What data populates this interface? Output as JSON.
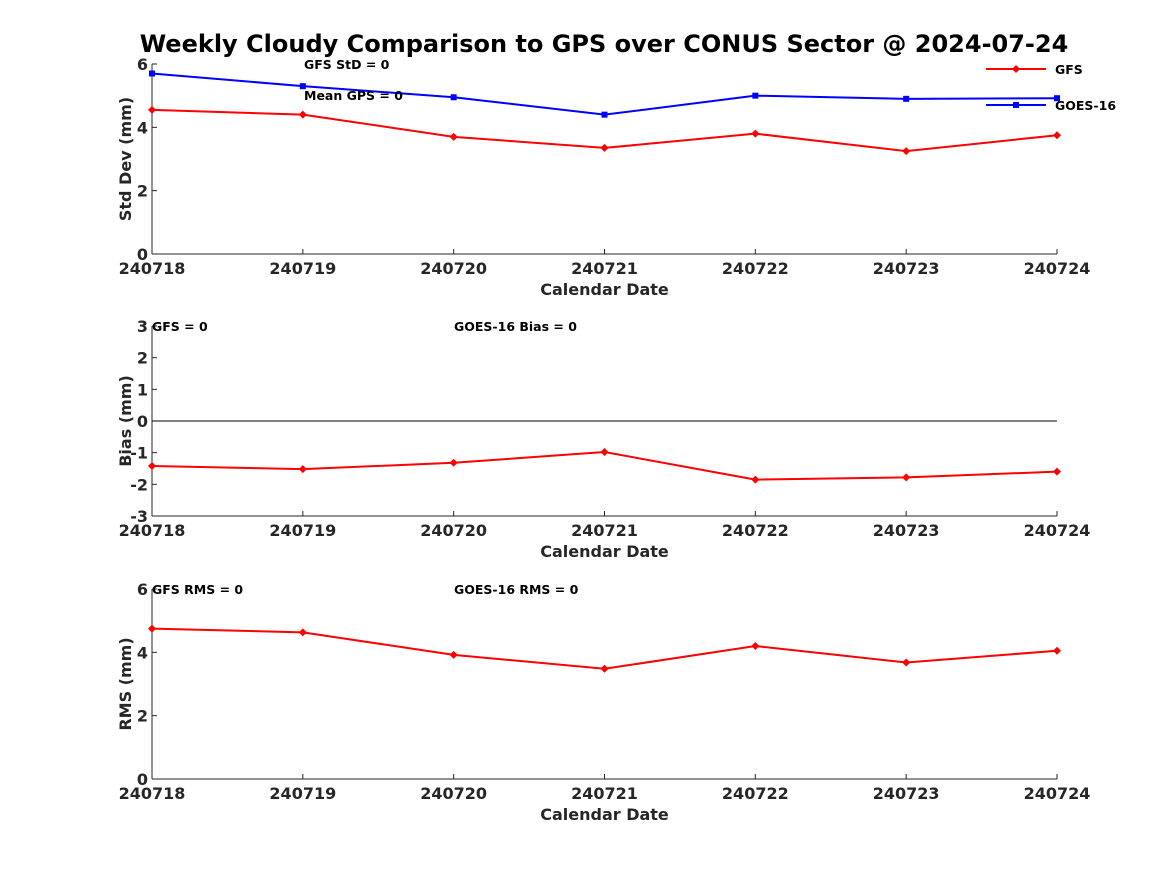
{
  "figure_title": "Weekly Cloudy Comparison to GPS over CONUS Sector @ 2024-07-24",
  "colors": {
    "gfs": "#ff0000",
    "goes16": "#0000ff",
    "axis": "#262626",
    "zero_line": "#000000"
  },
  "chart_data": [
    {
      "type": "line",
      "id": "stddev",
      "title": "",
      "xlabel": "Calendar Date",
      "ylabel": "Std Dev (mm)",
      "categories": [
        "240718",
        "240719",
        "240720",
        "240721",
        "240722",
        "240723",
        "240724"
      ],
      "ylim": [
        0,
        6
      ],
      "yticks": [
        "0",
        "2",
        "4",
        "6"
      ],
      "grid": false,
      "legend": "top-right",
      "annotations": [
        "GFS StD = 0",
        "Mean GPS = 0"
      ],
      "series": [
        {
          "name": "GFS",
          "color": "#ff0000",
          "marker": "diamond",
          "values": [
            4.55,
            4.4,
            3.7,
            3.35,
            3.8,
            3.25,
            3.75
          ]
        },
        {
          "name": "GOES-16",
          "color": "#0000ff",
          "marker": "square",
          "values": [
            5.7,
            5.3,
            4.95,
            4.4,
            5.0,
            4.9,
            4.92
          ]
        }
      ]
    },
    {
      "type": "line",
      "id": "bias",
      "title": "",
      "xlabel": "Calendar Date",
      "ylabel": "Bias (mm)",
      "categories": [
        "240718",
        "240719",
        "240720",
        "240721",
        "240722",
        "240723",
        "240724"
      ],
      "ylim": [
        -3,
        3
      ],
      "yticks": [
        "-3",
        "-2",
        "-1",
        "0",
        "1",
        "2",
        "3"
      ],
      "grid": false,
      "zero_line": true,
      "annotations": [
        "GFS = 0",
        "GOES-16 Bias  = 0"
      ],
      "series": [
        {
          "name": "GFS",
          "color": "#ff0000",
          "marker": "diamond",
          "values": [
            -1.42,
            -1.52,
            -1.32,
            -0.98,
            -1.85,
            -1.78,
            -1.6
          ]
        }
      ]
    },
    {
      "type": "line",
      "id": "rms",
      "title": "",
      "xlabel": "Calendar Date",
      "ylabel": "RMS (mm)",
      "categories": [
        "240718",
        "240719",
        "240720",
        "240721",
        "240722",
        "240723",
        "240724"
      ],
      "ylim": [
        0,
        6
      ],
      "yticks": [
        "0",
        "2",
        "4",
        "6"
      ],
      "grid": false,
      "annotations": [
        "GFS RMS = 0",
        "GOES-16 RMS = 0"
      ],
      "series": [
        {
          "name": "GFS",
          "color": "#ff0000",
          "marker": "diamond",
          "values": [
            4.75,
            4.63,
            3.92,
            3.48,
            4.2,
            3.68,
            4.05
          ]
        }
      ]
    }
  ]
}
